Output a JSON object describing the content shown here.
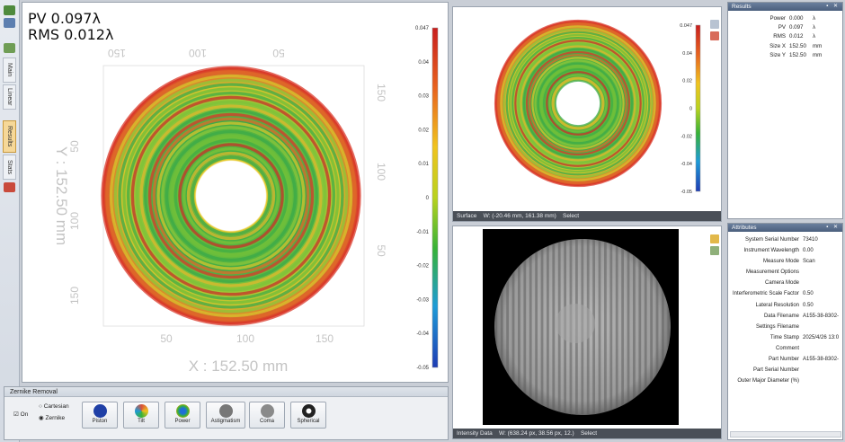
{
  "main_view": {
    "pv_label": "PV 0.097λ",
    "rms_label": "RMS 0.012λ",
    "x_axis_title": "X : 152.50 mm",
    "y_axis_title": "Y : 152.50 mm",
    "bottom_ticks": [
      "50",
      "100",
      "150"
    ],
    "top_ticks": [
      "150",
      "100",
      "50"
    ],
    "left_ticks": [
      "50",
      "100",
      "150"
    ],
    "right_ticks": [
      "150",
      "100",
      "50"
    ]
  },
  "colorbar_main": {
    "ticks": [
      "0.047",
      "0.04",
      "0.03",
      "0.02",
      "0.01",
      "0",
      "-0.01",
      "-0.02",
      "-0.03",
      "-0.04",
      "-0.05"
    ],
    "colors": [
      "#c81e1e",
      "#e8641e",
      "#f0c31e",
      "#b9d21e",
      "#37b237",
      "#1e9bd7",
      "#1e3cb4"
    ]
  },
  "colorbar_small": {
    "ticks": [
      "0.047",
      "0.04",
      "0.02",
      "0",
      "-0.02",
      "-0.04",
      "-0.05"
    ]
  },
  "left_toolbar": {
    "tabs": [
      "Main",
      "Linear",
      "Results",
      "Stats"
    ]
  },
  "surface_panel": {
    "status_name": "Surface",
    "status_coords": "W: (-20.46 mm, 161.38 mm)",
    "status_mode": "Select"
  },
  "intensity_panel": {
    "status_name": "Intensity Data",
    "status_coords": "W: (638.24 px, 38.56 px, 12.)",
    "status_mode": "Select"
  },
  "zernike": {
    "title": "Zernike Removal",
    "on_label": "On",
    "cartesian_label": "Cartesian",
    "zernike_label": "Zernike",
    "buttons": [
      {
        "label": "Piston",
        "color": "#1f3fa6"
      },
      {
        "label": "Tilt",
        "color": "#d8503a"
      },
      {
        "label": "Power",
        "color": "#e8a21e"
      },
      {
        "label": "Astigmatism",
        "color": "#777777"
      },
      {
        "label": "Coma",
        "color": "#8a8a8a"
      },
      {
        "label": "Spherical",
        "color": "#222222"
      }
    ]
  },
  "results": {
    "title": "Results",
    "rows": [
      {
        "key": "Power",
        "value": "0.000",
        "unit": "λ"
      },
      {
        "key": "PV",
        "value": "0.097",
        "unit": "λ"
      },
      {
        "key": "RMS",
        "value": "0.012",
        "unit": "λ"
      },
      {
        "key": "Size X",
        "value": "152.50",
        "unit": "mm"
      },
      {
        "key": "Size Y",
        "value": "152.50",
        "unit": "mm"
      }
    ]
  },
  "attributes": {
    "title": "Attributes",
    "rows": [
      {
        "key": "System Serial Number",
        "value": "73410"
      },
      {
        "key": "Instrument Wavelength",
        "value": "0.00"
      },
      {
        "key": "Measure Mode",
        "value": "Scan"
      },
      {
        "key": "Measurement Options",
        "value": ""
      },
      {
        "key": "Camera Mode",
        "value": ""
      },
      {
        "key": "Interferometric Scale Factor",
        "value": "0.50"
      },
      {
        "key": "Lateral Resolution",
        "value": "0.50"
      },
      {
        "key": "Data Filename",
        "value": "A155-38-8302-"
      },
      {
        "key": "Settings Filename",
        "value": ""
      },
      {
        "key": "Time Stamp",
        "value": "2025/4/26 13:0"
      },
      {
        "key": "Comment",
        "value": ""
      },
      {
        "key": "Part Number",
        "value": "A155-38-8302-"
      },
      {
        "key": "Part Serial Number",
        "value": ""
      },
      {
        "key": "Outer Major Diameter (%)",
        "value": ""
      }
    ]
  }
}
